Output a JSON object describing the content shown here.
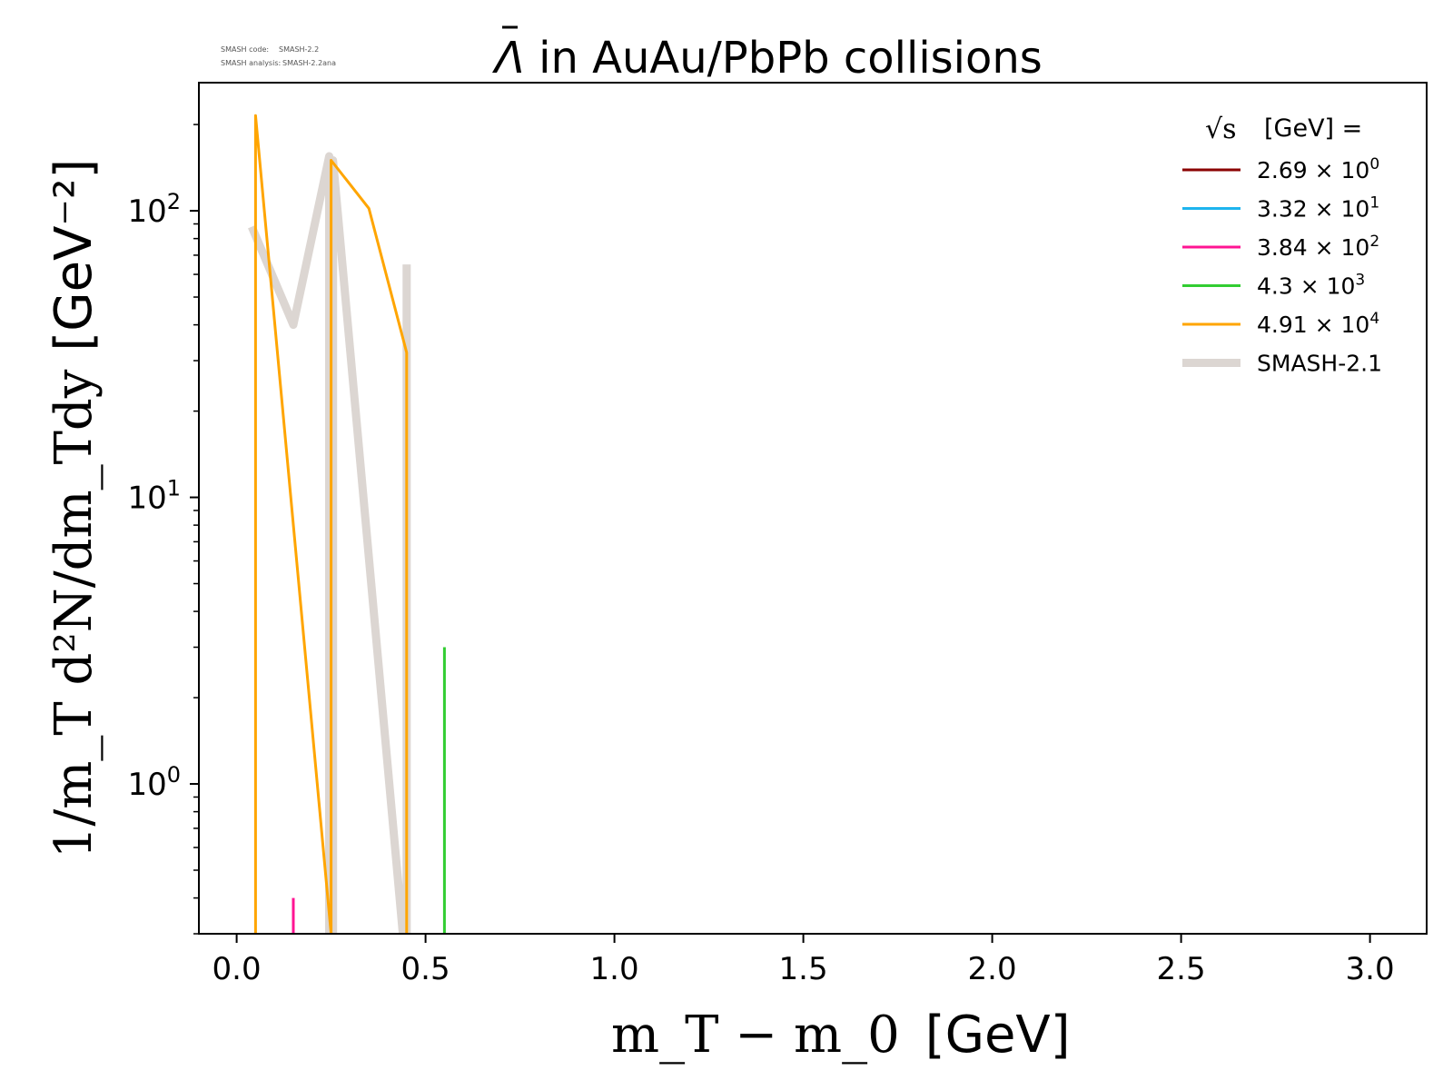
{
  "meta": {
    "code_label": "SMASH code:",
    "code_value": "SMASH-2.2",
    "analysis_label": "SMASH analysis:",
    "analysis_value": "SMASH-2.2ana"
  },
  "chart_data": {
    "type": "line",
    "title": "Λ̄ in AuAu/PbPb collisions",
    "title_symbol": "Λ",
    "title_rest": " in AuAu/PbPb collisions",
    "xlabel_math": "m_T − m_0",
    "xlabel_unit": "[GeV]",
    "ylabel_math": "1/m_T d²N/dm_Tdy",
    "ylabel_unit": "[GeV⁻²]",
    "x_ticks": [
      "0.0",
      "0.5",
      "1.0",
      "1.5",
      "2.0",
      "2.5",
      "3.0"
    ],
    "y_ticks": [
      {
        "base": "10",
        "exp": "0"
      },
      {
        "base": "10",
        "exp": "1"
      },
      {
        "base": "10",
        "exp": "2"
      }
    ],
    "xlim": [
      -0.1,
      3.15
    ],
    "ylim": [
      0.3,
      280
    ],
    "yscale": "log",
    "grid": false,
    "legend": {
      "placement": "top-right",
      "title_symbol": "√s",
      "title_unit": "[GeV] ="
    },
    "series": [
      {
        "name": "2.69 × 10",
        "exp": "0",
        "color": "#8b0000",
        "width": 3,
        "x": [],
        "y": []
      },
      {
        "name": "3.32 × 10",
        "exp": "1",
        "color": "#1eb4ee",
        "width": 3,
        "x": [],
        "y": []
      },
      {
        "name": "3.84 × 10",
        "exp": "2",
        "color": "#ff1493",
        "width": 3,
        "x": [
          0.15,
          0.15
        ],
        "y": [
          0.3,
          0.4
        ]
      },
      {
        "name": "4.3 × 10",
        "exp": "3",
        "color": "#32cd32",
        "width": 3,
        "x": [
          0.55,
          0.55
        ],
        "y": [
          0.3,
          3.0
        ]
      },
      {
        "name": "4.91 × 10",
        "exp": "4",
        "color": "#ffa500",
        "width": 3,
        "x": [
          0.05,
          0.05,
          0.25,
          0.25,
          0.35,
          0.45,
          0.45
        ],
        "y": [
          0.3,
          215,
          0.3,
          150,
          102,
          32,
          0.3
        ]
      },
      {
        "name": "SMASH-2.1",
        "exp": "",
        "color": "#dcd6d2",
        "width": 9,
        "x": [
          0.04,
          0.15,
          0.245,
          0.245,
          0.255,
          0.255,
          0.44,
          0.44,
          0.45,
          0.45
        ],
        "y": [
          88,
          40,
          155,
          0.3,
          0.3,
          150,
          0.3,
          0.3,
          0.3,
          65
        ]
      }
    ]
  }
}
